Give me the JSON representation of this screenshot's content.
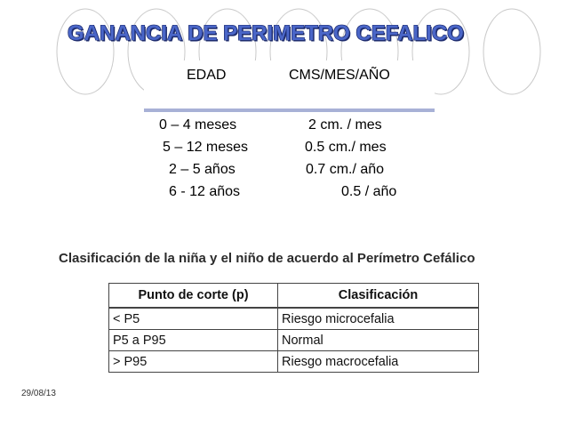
{
  "slide": {
    "title": "GANANCIA DE PERIMETRO CEFALICO",
    "date": "29/08/13"
  },
  "rate_table": {
    "headers": [
      "EDAD",
      "CMS/MES/AÑO"
    ],
    "rows": [
      {
        "edad": "0 – 4  meses",
        "ganancia": "2 cm. / mes"
      },
      {
        "edad": "5 – 12 meses",
        "ganancia": "0.5 cm./ mes"
      },
      {
        "edad": "2 – 5 años",
        "ganancia": "0.7 cm./ año"
      },
      {
        "edad": "6  - 12 años",
        "ganancia": "0.5 / año"
      }
    ]
  },
  "classification": {
    "title": "Clasificación de la niña y el niño de acuerdo al Perímetro Cefálico",
    "headers": [
      "Punto de corte (p)",
      "Clasificación"
    ],
    "rows": [
      {
        "punto": "< P5",
        "clase": "Riesgo microcefalia"
      },
      {
        "punto": "P5 a P95",
        "clase": "Normal"
      },
      {
        "punto": "> P95",
        "clase": "Riesgo macrocefalia"
      }
    ]
  },
  "colors": {
    "title_fill": "#4a66c8",
    "title_outline": "#1e2c6e",
    "circle_outline": "#c9c9c9",
    "header_bar": "#a8b1d6"
  }
}
